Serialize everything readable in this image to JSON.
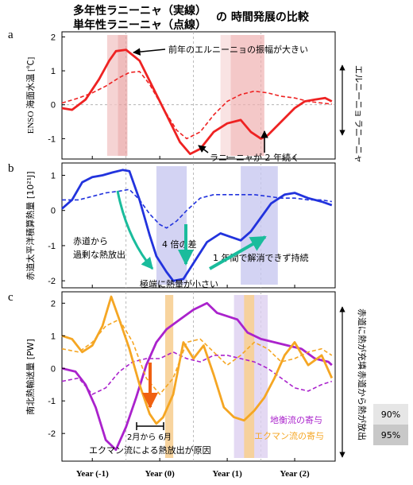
{
  "header": {
    "line1": "多年性ラニーニャ（実線）",
    "line2": "単年性ラニーニャ（点線）",
    "suffix": "の 時間発展の比較"
  },
  "shared_x": {
    "ticks": [
      "Year (-1)",
      "Year (0)",
      "Year (1)",
      "Year (2)"
    ],
    "range": [
      -1.45,
      2.6
    ],
    "guides": [
      -0.5,
      0.5,
      1.5
    ]
  },
  "legend_boxes": [
    {
      "label": "90%",
      "color": "#e6e6e6"
    },
    {
      "label": "95%",
      "color": "#c8c8c8"
    }
  ],
  "chart_data": [
    {
      "panel": "a",
      "type": "line",
      "ylabel": "ENSO 海面水温 [℃]",
      "ylim": [
        -1.6,
        2.15
      ],
      "yticks": [
        -1,
        0,
        1,
        2
      ],
      "color": "#ee2222",
      "series": [
        {
          "style": "solid",
          "x": [
            -1.45,
            -1.3,
            -1.1,
            -0.9,
            -0.75,
            -0.65,
            -0.5,
            -0.3,
            -0.1,
            0.1,
            0.3,
            0.45,
            0.6,
            0.8,
            1.0,
            1.2,
            1.35,
            1.5,
            1.6,
            1.8,
            2.0,
            2.15,
            2.3,
            2.45,
            2.55
          ],
          "y": [
            -0.1,
            -0.15,
            0.15,
            0.75,
            1.3,
            1.58,
            1.62,
            1.3,
            0.5,
            -0.3,
            -1.1,
            -1.45,
            -1.3,
            -0.8,
            -0.55,
            -0.45,
            -0.8,
            -1.0,
            -0.9,
            -0.5,
            -0.1,
            0.1,
            0.15,
            0.2,
            0.1
          ]
        },
        {
          "style": "dashed",
          "x": [
            -1.45,
            -1.2,
            -1.0,
            -0.8,
            -0.6,
            -0.45,
            -0.3,
            -0.15,
            0.05,
            0.25,
            0.4,
            0.6,
            0.8,
            1.0,
            1.2,
            1.4,
            1.6,
            1.8,
            2.0,
            2.2,
            2.4,
            2.55
          ],
          "y": [
            0.05,
            0.2,
            0.35,
            0.55,
            0.8,
            0.95,
            0.98,
            0.6,
            -0.1,
            -0.75,
            -1.0,
            -0.8,
            -0.3,
            0.1,
            0.3,
            0.4,
            0.35,
            0.25,
            0.2,
            0.1,
            0.05,
            0.02
          ]
        }
      ],
      "annotations": [
        "前年のエルニーニョの振幅が大きい",
        "ラニーニャが 2 年続く"
      ],
      "right_labels": {
        "up": "エルニーニョ",
        "down": "ラニーニャ"
      }
    },
    {
      "panel": "b",
      "type": "line",
      "ylabel": "赤道太平洋積算熱量 [10²¹J]",
      "ylim": [
        -2.2,
        1.35
      ],
      "yticks": [
        -2,
        -1,
        0,
        1
      ],
      "color": "#2233dd",
      "series": [
        {
          "style": "solid",
          "x": [
            -1.45,
            -1.3,
            -1.15,
            -1.0,
            -0.85,
            -0.7,
            -0.55,
            -0.45,
            -0.3,
            -0.15,
            -0.05,
            0.1,
            0.2,
            0.35,
            0.5,
            0.7,
            0.9,
            1.05,
            1.2,
            1.35,
            1.5,
            1.65,
            1.85,
            2.0,
            2.2,
            2.4,
            2.55
          ],
          "y": [
            0.05,
            0.3,
            0.8,
            0.95,
            1.0,
            1.08,
            1.15,
            1.12,
            0.3,
            -0.7,
            -1.3,
            -1.75,
            -2.0,
            -1.95,
            -1.5,
            -0.9,
            -0.65,
            -0.75,
            -0.85,
            -0.6,
            -0.2,
            0.2,
            0.45,
            0.5,
            0.35,
            0.25,
            0.15
          ]
        },
        {
          "style": "dashed",
          "x": [
            -1.45,
            -1.2,
            -1.0,
            -0.8,
            -0.6,
            -0.45,
            -0.3,
            -0.15,
            0.0,
            0.1,
            0.25,
            0.4,
            0.6,
            0.8,
            1.0,
            1.2,
            1.4,
            1.6,
            1.8,
            2.0,
            2.2,
            2.4,
            2.55
          ],
          "y": [
            0.3,
            0.3,
            0.4,
            0.5,
            0.55,
            0.6,
            0.3,
            -0.1,
            -0.4,
            -0.5,
            -0.3,
            0.0,
            0.35,
            0.45,
            0.45,
            0.45,
            0.45,
            0.4,
            0.35,
            0.35,
            0.3,
            0.3,
            0.25
          ]
        }
      ],
      "annotations": [
        "4 倍の差",
        "赤道から",
        "過剰な熱放出",
        "極端に熱量が小さい",
        "1 年間で解消できず持続"
      ]
    },
    {
      "panel": "c",
      "type": "line",
      "ylabel": "南北熱輸送量 [PW]",
      "ylim": [
        -2.85,
        2.35
      ],
      "yticks": [
        -2,
        -1,
        0,
        1,
        2
      ],
      "series": [
        {
          "name": "地衡流の寄与",
          "color": "#aa22cc",
          "style": "solid",
          "x": [
            -1.45,
            -1.25,
            -1.1,
            -0.95,
            -0.8,
            -0.65,
            -0.5,
            -0.35,
            -0.2,
            -0.05,
            0.1,
            0.3,
            0.5,
            0.7,
            0.85,
            1.0,
            1.15,
            1.3,
            1.5,
            1.7,
            1.9,
            2.1,
            2.3,
            2.5,
            2.55
          ],
          "y": [
            0.0,
            -0.1,
            -0.5,
            -1.2,
            -2.2,
            -2.5,
            -1.8,
            -0.9,
            0.1,
            0.8,
            1.2,
            1.5,
            1.8,
            2.0,
            1.7,
            1.6,
            1.5,
            1.1,
            0.9,
            0.8,
            0.7,
            0.6,
            0.3,
            0.2,
            0.1
          ]
        },
        {
          "name": "地衡流の寄与",
          "color": "#aa22cc",
          "style": "dashed",
          "x": [
            -1.45,
            -1.2,
            -1.0,
            -0.8,
            -0.6,
            -0.4,
            -0.2,
            0.0,
            0.2,
            0.4,
            0.6,
            0.8,
            1.0,
            1.2,
            1.4,
            1.6,
            1.8,
            2.0,
            2.2,
            2.4,
            2.55
          ],
          "y": [
            -0.4,
            -0.3,
            -0.8,
            -0.6,
            -0.1,
            0.2,
            0.3,
            0.3,
            0.5,
            0.3,
            0.2,
            0.4,
            0.4,
            0.3,
            0.2,
            0.0,
            -0.3,
            -0.6,
            -0.7,
            -0.5,
            -0.4
          ]
        },
        {
          "name": "エクマン流の寄与",
          "color": "#f5a623",
          "style": "solid",
          "x": [
            -1.45,
            -1.3,
            -1.15,
            -1.0,
            -0.85,
            -0.72,
            -0.6,
            -0.45,
            -0.3,
            -0.15,
            -0.05,
            0.05,
            0.2,
            0.35,
            0.5,
            0.65,
            0.8,
            0.95,
            1.1,
            1.25,
            1.4,
            1.55,
            1.7,
            1.85,
            2.0,
            2.2,
            2.4,
            2.55
          ],
          "y": [
            1.0,
            0.9,
            0.5,
            0.7,
            1.3,
            2.2,
            1.5,
            0.6,
            -0.5,
            -1.4,
            -1.7,
            -1.5,
            -0.8,
            0.8,
            0.3,
            0.7,
            -0.2,
            -1.2,
            -1.5,
            -1.6,
            -1.3,
            -0.9,
            -0.3,
            0.4,
            0.8,
            0.1,
            0.4,
            -0.3
          ]
        },
        {
          "name": "エクマン流の寄与",
          "color": "#f5a623",
          "style": "dashed",
          "x": [
            -1.45,
            -1.2,
            -1.0,
            -0.8,
            -0.6,
            -0.4,
            -0.2,
            0.0,
            0.2,
            0.4,
            0.6,
            0.8,
            1.0,
            1.2,
            1.4,
            1.6,
            1.8,
            2.0,
            2.2,
            2.4,
            2.55
          ],
          "y": [
            0.6,
            0.5,
            0.8,
            1.3,
            1.5,
            0.8,
            -0.3,
            -0.8,
            -0.3,
            0.8,
            0.9,
            0.5,
            0.1,
            0.4,
            0.8,
            0.6,
            0.2,
            0.3,
            0.5,
            0.6,
            0.4
          ]
        }
      ],
      "annotations": [
        "2月から 6月",
        "エクマン流による熱放出が原因"
      ],
      "right_labels": {
        "up": "赤道に熱が充填",
        "down": "赤道から熱が放出"
      }
    }
  ]
}
